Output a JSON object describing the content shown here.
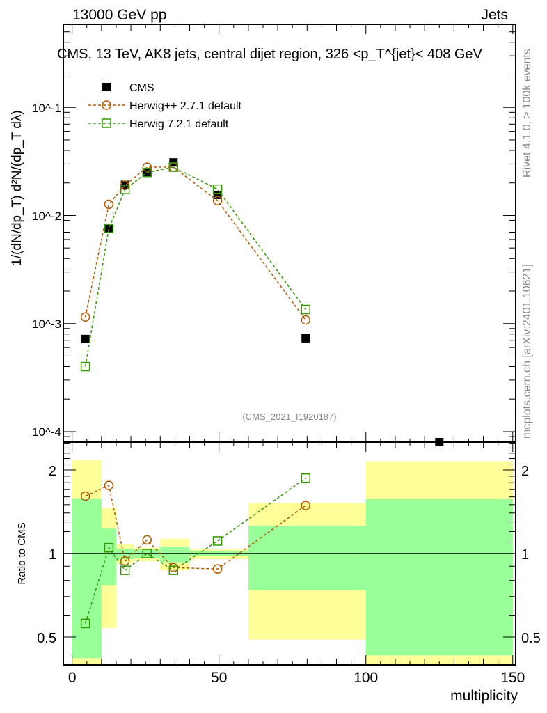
{
  "header": {
    "left": "13000 GeV pp",
    "right": "Jets"
  },
  "side_labels": {
    "rivet": "Rivet 4.1.0, ≥ 100k events",
    "mcplots": "mcplots.cern.ch [arXiv:2401.10621]"
  },
  "watermark": "(CMS_2021_I1920187)",
  "colors": {
    "cms": "#000000",
    "herwigpp": "#b35900",
    "herwig7": "#339900",
    "band_yellow": "#ffff99",
    "band_green": "#99ff99"
  },
  "chart_data": [
    {
      "type": "scatter",
      "title": "CMS, 13 TeV, AK8 jets, central dijet region, 326 <p_T^{jet}< 408 GeV",
      "ylabel": "1/(dN/dp_T) d²N/(dp_T dλ)",
      "yscale": "log",
      "ylim": [
        8e-05,
        0.586
      ],
      "xlim": [
        -3,
        151
      ],
      "yticks": [
        {
          "v": 0.1,
          "label": "10^-1"
        },
        {
          "v": 0.01,
          "label": "10^-2"
        },
        {
          "v": 0.001,
          "label": "10^-3"
        },
        {
          "v": 0.0001,
          "label": "10^-4"
        }
      ],
      "legend_placement": "top-left",
      "series": [
        {
          "name": "CMS",
          "marker": "filled-square",
          "x": [
            4.5,
            12.5,
            18,
            25.5,
            34.5,
            49.5,
            79.5,
            125
          ],
          "y": [
            0.00072,
            0.0075,
            0.0192,
            0.025,
            0.031,
            0.0155,
            0.00073,
            8e-05
          ]
        },
        {
          "name": "Herwig++ 2.7.1 default",
          "marker": "open-circle",
          "x": [
            4.5,
            12.5,
            18,
            25.5,
            34.5,
            49.5,
            79.5
          ],
          "y": [
            0.00115,
            0.0127,
            0.019,
            0.028,
            0.028,
            0.0137,
            0.00108
          ]
        },
        {
          "name": "Herwig 7.2.1 default",
          "marker": "open-square",
          "x": [
            4.5,
            12.5,
            18,
            25.5,
            34.5,
            49.5,
            79.5
          ],
          "y": [
            0.0004,
            0.0076,
            0.0174,
            0.025,
            0.028,
            0.0175,
            0.00135
          ]
        }
      ]
    },
    {
      "type": "scatter",
      "ylabel": "Ratio to CMS",
      "xlabel": "multiplicity",
      "yscale": "log",
      "ylim": [
        0.397,
        2.52
      ],
      "xlim": [
        -3,
        151
      ],
      "yticks": [
        {
          "v": 2,
          "label": "2"
        },
        {
          "v": 1,
          "label": "1"
        },
        {
          "v": 0.5,
          "label": "0.5"
        }
      ],
      "xticks": [
        {
          "v": 0,
          "label": "0"
        },
        {
          "v": 50,
          "label": "50"
        },
        {
          "v": 100,
          "label": "100"
        },
        {
          "v": 150,
          "label": "150"
        }
      ],
      "bands": [
        {
          "x0": 0,
          "x1": 10,
          "yellow": [
            0.35,
            2.17
          ],
          "green": [
            0.42,
            1.58
          ]
        },
        {
          "x0": 10,
          "x1": 15,
          "yellow": [
            0.54,
            1.46
          ],
          "green": [
            0.77,
            1.23
          ]
        },
        {
          "x0": 15,
          "x1": 21,
          "yellow": [
            0.92,
            1.08
          ],
          "green": [
            0.955,
            1.04
          ]
        },
        {
          "x0": 21,
          "x1": 30,
          "yellow": [
            0.94,
            1.05
          ],
          "green": [
            0.96,
            1.035
          ]
        },
        {
          "x0": 30,
          "x1": 40,
          "yellow": [
            0.87,
            1.13
          ],
          "green": [
            0.93,
            1.06
          ]
        },
        {
          "x0": 40,
          "x1": 60,
          "yellow": [
            0.955,
            1.035
          ],
          "green": [
            0.98,
            1.02
          ]
        },
        {
          "x0": 60,
          "x1": 100,
          "yellow": [
            0.49,
            1.52
          ],
          "green": [
            0.74,
            1.26
          ]
        },
        {
          "x0": 100,
          "x1": 150,
          "yellow": [
            0.35,
            2.15
          ],
          "green": [
            0.43,
            1.57
          ]
        }
      ],
      "series": [
        {
          "name": "Herwig++ 2.7.1 default",
          "marker": "open-circle",
          "x": [
            4.5,
            12.5,
            18,
            25.5,
            34.5,
            49.5,
            79.5
          ],
          "y": [
            1.61,
            1.76,
            0.94,
            1.12,
            0.89,
            0.88,
            1.49
          ]
        },
        {
          "name": "Herwig 7.2.1 default",
          "marker": "open-square",
          "x": [
            4.5,
            12.5,
            18,
            25.5,
            34.5,
            49.5,
            79.5
          ],
          "y": [
            0.56,
            1.05,
            0.87,
            1.0,
            0.87,
            1.11,
            1.87
          ]
        }
      ]
    }
  ]
}
